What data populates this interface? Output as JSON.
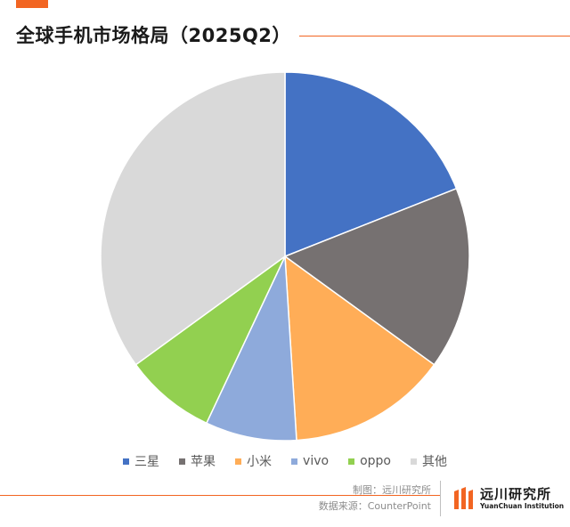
{
  "title": "全球手机市场格局（2025Q2）",
  "chart_data": {
    "type": "pie",
    "title": "全球手机市场格局（2025Q2）",
    "slices": [
      {
        "label": "三星",
        "value": 19,
        "color": "#4472c4"
      },
      {
        "label": "苹果",
        "value": 16,
        "color": "#767171"
      },
      {
        "label": "小米",
        "value": 14,
        "color": "#ffad57"
      },
      {
        "label": "vivo",
        "value": 8,
        "color": "#8eaadb"
      },
      {
        "label": "oppo",
        "value": 8,
        "color": "#92d050"
      },
      {
        "label": "其他",
        "value": 35,
        "color": "#d9d9d9"
      }
    ],
    "legend_position": "bottom"
  },
  "footer": {
    "made_by": "制图：远川研究所",
    "source": "数据来源：CounterPoint"
  },
  "brand": {
    "name_cn": "远川研究所",
    "name_en": "YuanChuan Institution"
  },
  "colors": {
    "accent": "#f26522"
  }
}
